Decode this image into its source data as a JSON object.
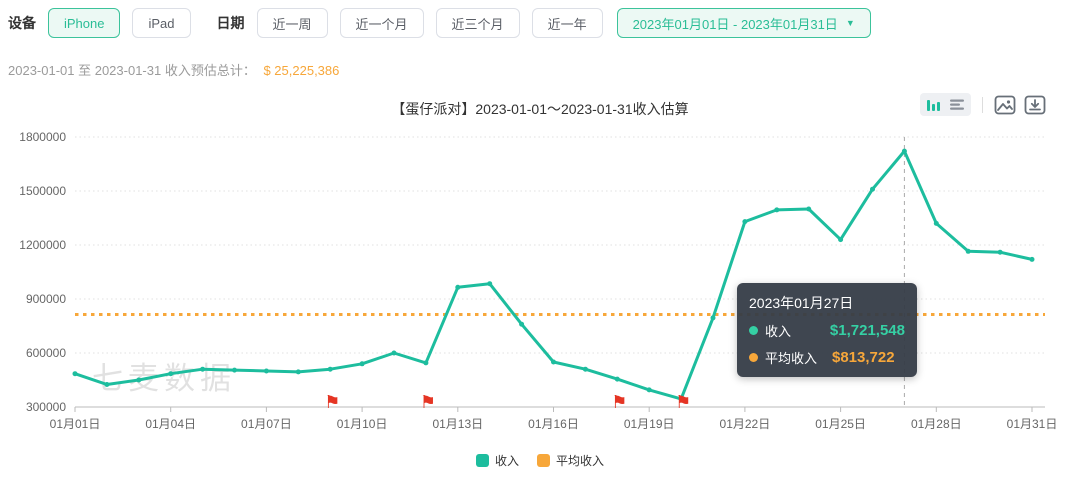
{
  "toolbar": {
    "device_label": "设备",
    "device_options": [
      {
        "label": "iPhone",
        "active": true
      },
      {
        "label": "iPad",
        "active": false
      }
    ],
    "date_label": "日期",
    "range_options": [
      {
        "label": "近一周",
        "active": false
      },
      {
        "label": "近一个月",
        "active": false
      },
      {
        "label": "近三个月",
        "active": false
      },
      {
        "label": "近一年",
        "active": false
      }
    ],
    "date_range": "2023年01月01日 - 2023年01月31日",
    "date_range_caret": "▼"
  },
  "summary": {
    "prefix": "2023-01-01 至 2023-01-31 收入预估总计：",
    "total": "$ 25,225,386"
  },
  "chart_header": {
    "title": "【蛋仔派对】2023-01-01～2023-01-31收入估算"
  },
  "watermark": "七麦数据",
  "tooltip": {
    "title": "2023年01月27日",
    "rows": [
      {
        "label": "收入",
        "value": "$1,721,548",
        "color": "#35d0a4"
      },
      {
        "label": "平均收入",
        "value": "$813,722",
        "color": "#f7a73a"
      }
    ]
  },
  "legend": [
    {
      "label": "收入",
      "color": "#1dbd9e"
    },
    {
      "label": "平均收入",
      "color": "#f7a73a"
    }
  ],
  "chart_data": {
    "type": "line",
    "title": "【蛋仔派对】2023-01-01～2023-01-31收入估算",
    "x_tick_labels": [
      "01月01日",
      "01月04日",
      "01月07日",
      "01月10日",
      "01月13日",
      "01月16日",
      "01月19日",
      "01月22日",
      "01月25日",
      "01月28日",
      "01月31日"
    ],
    "x_tick_days": [
      1,
      4,
      7,
      10,
      13,
      16,
      19,
      22,
      25,
      28,
      31
    ],
    "ylim": [
      300000,
      1800000
    ],
    "yticks": [
      300000,
      600000,
      900000,
      1200000,
      1500000,
      1800000
    ],
    "grid": "horizontal-dotted",
    "legend_position": "bottom-center",
    "series": [
      {
        "name": "收入",
        "type": "line",
        "color": "#1dbd9e",
        "values_by_day": [
          485000,
          425000,
          450000,
          485000,
          510000,
          505000,
          500000,
          495000,
          510000,
          540000,
          600000,
          545000,
          965000,
          985000,
          760000,
          550000,
          510000,
          455000,
          395000,
          345000,
          795000,
          1330000,
          1395000,
          1400000,
          1230000,
          1510000,
          1721548,
          1320000,
          1165000,
          1160000,
          1120000
        ]
      }
    ],
    "average_line": {
      "name": "平均收入",
      "color": "#f7a73a",
      "value": 813722,
      "style": "dotted-horizontal"
    },
    "highlight": {
      "day": 27,
      "revenue": 1721548,
      "average": 813722
    },
    "flag_days": [
      9,
      12,
      18,
      20
    ]
  },
  "colors": {
    "accent_green": "#2abd96",
    "line_green": "#1dbd9e",
    "orange": "#f7a73a",
    "flag_red": "#e53524",
    "grid": "#e0e0e0",
    "axis": "#bbbbbb",
    "pointer": "#aaaaaa"
  }
}
